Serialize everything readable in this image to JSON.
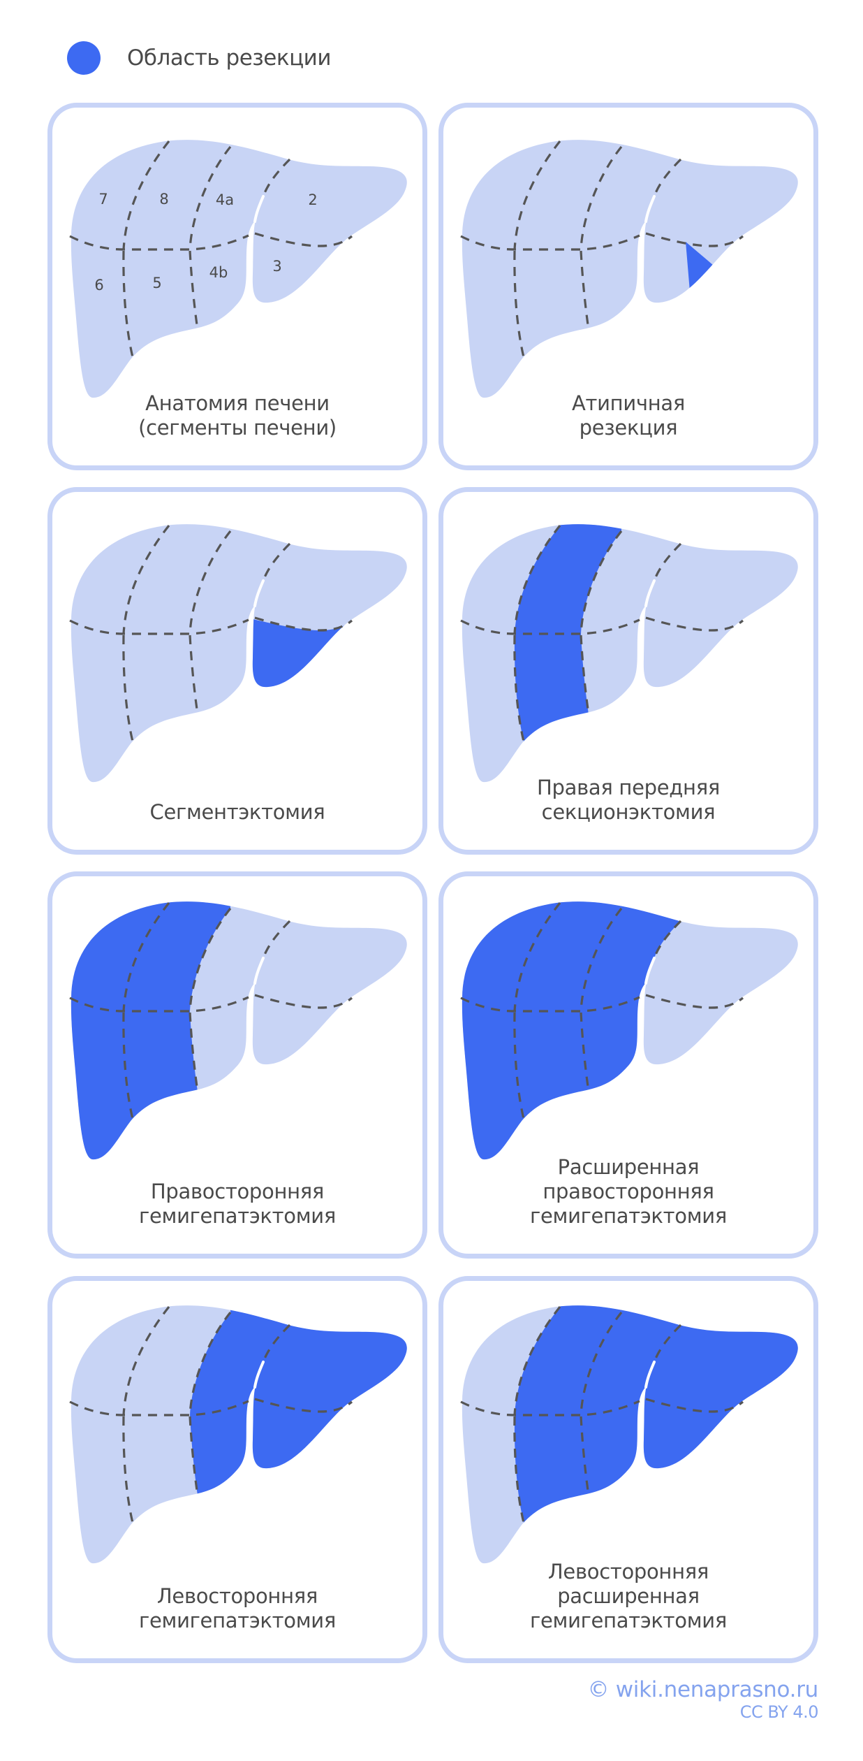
{
  "colors": {
    "resection": "#3d6af2",
    "liver": "#c8d4f5",
    "card_border": "#c8d4f7",
    "dash": "#555555",
    "text": "#4a4a4a",
    "footer": "#84a3ee"
  },
  "legend": {
    "icon": "resection-dot-icon",
    "label": "Область резекции"
  },
  "segment_labels": [
    "7",
    "8",
    "4a",
    "2",
    "6",
    "5",
    "4b",
    "3"
  ],
  "cards": [
    {
      "id": "anatomy",
      "caption": [
        "Анатомия печени",
        "(сегменты печени)"
      ],
      "highlight": "none",
      "show_labels": true
    },
    {
      "id": "atypical",
      "caption": [
        "Атипичная",
        "резекция"
      ],
      "highlight": "wedge"
    },
    {
      "id": "segmentectomy",
      "caption": [
        "Сегментэктомия"
      ],
      "highlight": "seg3"
    },
    {
      "id": "right-anterior-sectionectomy",
      "caption": [
        "Правая передняя",
        "секционэктомия"
      ],
      "highlight": "right-anterior"
    },
    {
      "id": "right-hemihepatectomy",
      "caption": [
        "Правосторонняя",
        "гемигепатэктомия"
      ],
      "highlight": "right-hemi"
    },
    {
      "id": "extended-right-hemihepatectomy",
      "caption": [
        "Расширенная",
        "правосторонняя",
        "гемигепатэктомия"
      ],
      "highlight": "extended-right"
    },
    {
      "id": "left-hemihepatectomy",
      "caption": [
        "Левосторонняя",
        "гемигепатэктомия"
      ],
      "highlight": "left-hemi"
    },
    {
      "id": "extended-left-hemihepatectomy",
      "caption": [
        "Левосторонняя",
        "расширенная",
        "гемигепатэктомия"
      ],
      "highlight": "extended-left"
    }
  ],
  "footer": {
    "site": "© wiki.nenaprasno.ru",
    "license": "CC BY 4.0"
  }
}
